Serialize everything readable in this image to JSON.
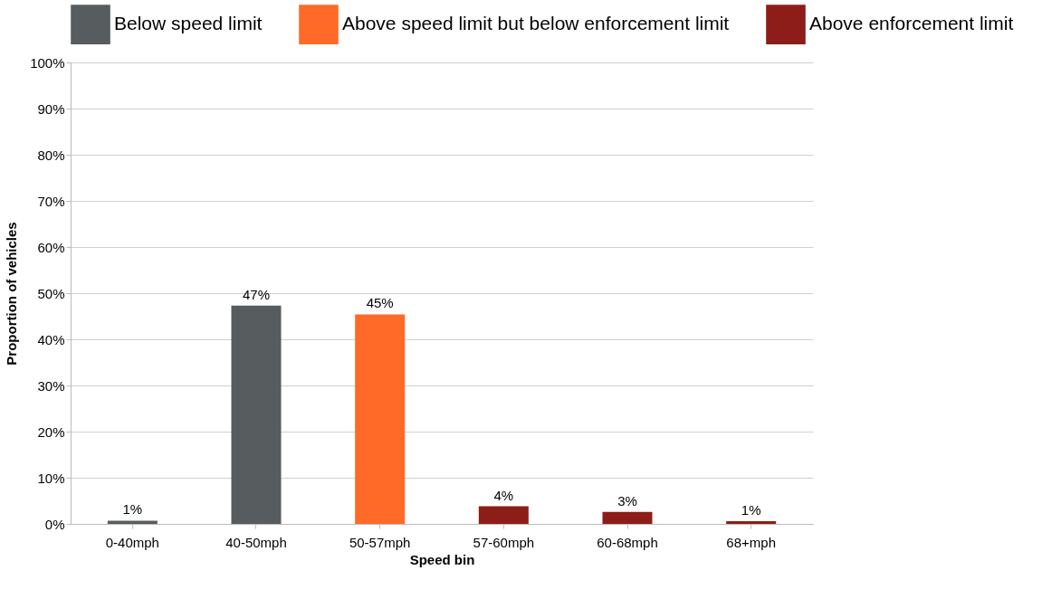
{
  "chart_data": {
    "type": "bar",
    "xlabel": "Speed bin",
    "ylabel": "Proportion of vehicles",
    "categories": [
      "0-40mph",
      "40-50mph",
      "50-57mph",
      "57-60mph",
      "60-68mph",
      "68+mph"
    ],
    "series": [
      {
        "name": "Below speed limit",
        "color": "#575c5e",
        "values": [
          0.7,
          47.3,
          null,
          null,
          null,
          null
        ],
        "value_labels": [
          "1%",
          "47%",
          null,
          null,
          null,
          null
        ]
      },
      {
        "name": "Above speed limit but below enforcement limit",
        "color": "#ff6a28",
        "values": [
          null,
          null,
          45.4,
          null,
          null,
          null
        ],
        "value_labels": [
          null,
          null,
          "45%",
          null,
          null,
          null
        ]
      },
      {
        "name": "Above enforcement limit",
        "color": "#8c1d18",
        "values": [
          null,
          null,
          null,
          3.8,
          2.6,
          0.6
        ],
        "value_labels": [
          null,
          null,
          null,
          "4%",
          "3%",
          "1%"
        ]
      }
    ],
    "ylim": [
      0,
      100
    ],
    "yticks": [
      {
        "value": 0,
        "label": "0%"
      },
      {
        "value": 10,
        "label": "10%"
      },
      {
        "value": 20,
        "label": "20%"
      },
      {
        "value": 30,
        "label": "30%"
      },
      {
        "value": 40,
        "label": "40%"
      },
      {
        "value": 50,
        "label": "50%"
      },
      {
        "value": 60,
        "label": "60%"
      },
      {
        "value": 70,
        "label": "70%"
      },
      {
        "value": 80,
        "label": "80%"
      },
      {
        "value": 90,
        "label": "90%"
      },
      {
        "value": 100,
        "label": "100%"
      }
    ],
    "grid": "y",
    "legend": "top"
  }
}
